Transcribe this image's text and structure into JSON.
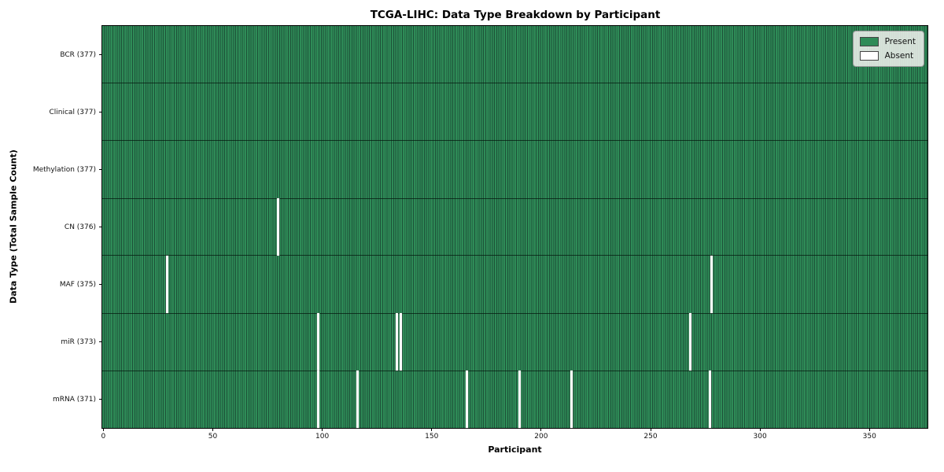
{
  "figure": {
    "title": "TCGA-LIHC: Data Type Breakdown by Participant",
    "x_axis_label": "Participant",
    "y_axis_label": "Data Type (Total Sample Count)"
  },
  "legend": {
    "items": [
      {
        "name": "present",
        "label": "Present",
        "color": "#2e8b57"
      },
      {
        "name": "absent",
        "label": "Absent",
        "color": "#ffffff"
      }
    ]
  },
  "chart_data": {
    "type": "heatmap",
    "title": "TCGA-LIHC: Data Type Breakdown by Participant",
    "xlabel": "Participant",
    "ylabel": "Data Type (Total Sample Count)",
    "x_range": [
      -0.5,
      376.5
    ],
    "x_ticks": [
      0,
      50,
      100,
      150,
      200,
      250,
      300,
      350
    ],
    "n_participants": 377,
    "legend_entries": [
      "Present",
      "Absent"
    ],
    "legend_position": "upper right",
    "grid": "cell-edges-only",
    "colors": {
      "present": "#2e8b57",
      "absent": "#ffffff",
      "cell_edge": "#1d5138",
      "row_separator": "#0a1a10",
      "plot_border": "#000000"
    },
    "rows": [
      {
        "label": "BCR (377)",
        "data_type": "BCR",
        "present_count": 377,
        "absent_count": 0,
        "absent_participants": []
      },
      {
        "label": "Clinical (377)",
        "data_type": "Clinical",
        "present_count": 377,
        "absent_count": 0,
        "absent_participants": []
      },
      {
        "label": "Methylation (377)",
        "data_type": "Methylation",
        "present_count": 377,
        "absent_count": 0,
        "absent_participants": []
      },
      {
        "label": "CN (376)",
        "data_type": "CN",
        "present_count": 376,
        "absent_count": 1,
        "absent_participants": [
          80
        ]
      },
      {
        "label": "MAF (375)",
        "data_type": "MAF",
        "present_count": 375,
        "absent_count": 2,
        "absent_participants": [
          29,
          278
        ]
      },
      {
        "label": "miR (373)",
        "data_type": "miR",
        "present_count": 373,
        "absent_count": 4,
        "absent_participants": [
          98,
          134,
          136,
          268
        ]
      },
      {
        "label": "mRNA (371)",
        "data_type": "mRNA",
        "present_count": 371,
        "absent_count": 6,
        "absent_participants": [
          98,
          116,
          166,
          190,
          214,
          277
        ]
      }
    ]
  }
}
